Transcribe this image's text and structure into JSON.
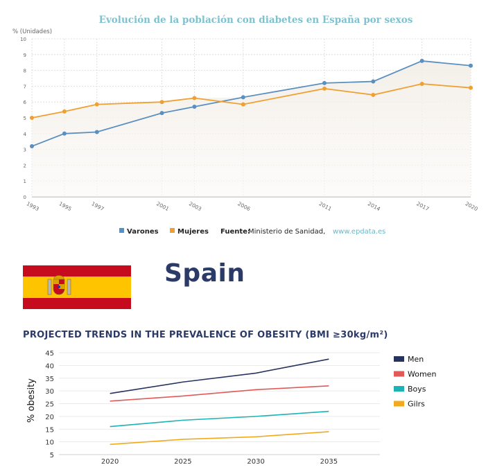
{
  "chart_data": [
    {
      "type": "area",
      "title": "Evolución de la población con diabetes en España por sexos",
      "ylabel": "% (Unidades)",
      "xlabel": "",
      "ylim": [
        0,
        10
      ],
      "yticks": [
        0,
        1,
        2,
        3,
        4,
        5,
        6,
        7,
        8,
        9,
        10
      ],
      "x": [
        1993,
        1995,
        1997,
        2001,
        2003,
        2006,
        2011,
        2014,
        2017,
        2020
      ],
      "x_scale": "categorical-uneven",
      "grid": true,
      "legend_position": "bottom-center",
      "series": [
        {
          "name": "Varones",
          "color": "#5a8fc0",
          "values": [
            3.2,
            4.0,
            4.1,
            5.3,
            5.7,
            6.3,
            7.2,
            7.3,
            8.6,
            8.3
          ]
        },
        {
          "name": "Mujeres",
          "color": "#f0a030",
          "values": [
            5.0,
            5.4,
            5.85,
            6.0,
            6.25,
            5.85,
            6.85,
            6.45,
            7.15,
            6.9
          ]
        }
      ],
      "source_label": "Fuente:",
      "source_text": "Ministerio de Sanidad,",
      "source_link": "www.epdata.es"
    },
    {
      "type": "line",
      "title": "PROJECTED TRENDS IN THE PREVALENCE OF OBESITY (BMI ≥30kg/m²)",
      "ylabel": "% obesity",
      "xlabel": "",
      "x": [
        2020,
        2025,
        2030,
        2035
      ],
      "ylim": [
        5,
        45
      ],
      "yticks": [
        5,
        10,
        15,
        20,
        25,
        30,
        35,
        40,
        45
      ],
      "grid": true,
      "legend_position": "right",
      "series": [
        {
          "name": "Men",
          "color": "#26335e",
          "values": [
            29,
            33.5,
            37,
            42.5
          ]
        },
        {
          "name": "Women",
          "color": "#e05a5a",
          "values": [
            26,
            28,
            30.5,
            32
          ]
        },
        {
          "name": "Boys",
          "color": "#1bb3b3",
          "values": [
            16,
            18.5,
            20,
            22
          ]
        },
        {
          "name": "Gilrs",
          "color": "#f2aa1a",
          "values": [
            9,
            11,
            12,
            14
          ]
        }
      ]
    }
  ],
  "country": {
    "name": "Spain"
  },
  "flag": {
    "stripe_red": "#c60b1e",
    "stripe_yellow": "#ffc400"
  }
}
